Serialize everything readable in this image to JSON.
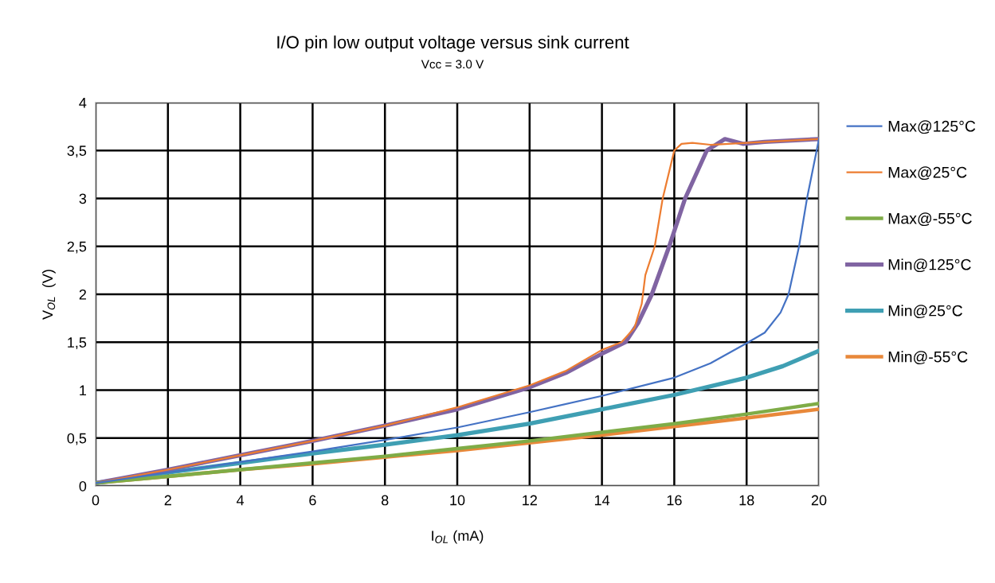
{
  "chart_data": {
    "type": "line",
    "title": "I/O pin low output voltage versus sink current",
    "subtitle": "Vcc = 3.0 V",
    "xlabel": "I$_{OL}$ (mA)",
    "ylabel": "V$_{OL}$  (V)",
    "xlim": [
      0,
      20
    ],
    "xticks": [
      0,
      2,
      4,
      6,
      8,
      10,
      12,
      14,
      16,
      18,
      20
    ],
    "ylim": [
      0,
      4
    ],
    "yticks": [
      0,
      {
        "value": 0.5,
        "label": "0,5"
      },
      1,
      {
        "value": 1.5,
        "label": "1,5"
      },
      2,
      {
        "value": 2.5,
        "label": "2,5"
      },
      3,
      {
        "value": 3.5,
        "label": "3,5"
      },
      4
    ],
    "grid": true,
    "legend": "right",
    "marker": "none",
    "line_style": "solid",
    "series": [
      {
        "name": "Max@125°C",
        "color": "#4472c4",
        "x": [
          0,
          2,
          4,
          6,
          8,
          10,
          12,
          14,
          16,
          17,
          18,
          18.5,
          18.94,
          19.16,
          19.45,
          19.67,
          20
        ],
        "values": [
          0.03,
          0.14,
          0.25,
          0.36,
          0.48,
          0.61,
          0.77,
          0.94,
          1.13,
          1.28,
          1.49,
          1.6,
          1.81,
          2.0,
          2.5,
          3.0,
          3.62
        ]
      },
      {
        "name": "Max@25°C",
        "color": "#ed7d31",
        "x": [
          0,
          2,
          4,
          6,
          8,
          10,
          12,
          13,
          14,
          14.54,
          14.9,
          15.1,
          15.2,
          15.46,
          15.68,
          16.0,
          16.2,
          16.5,
          17,
          17.5,
          18,
          20
        ],
        "values": [
          0.03,
          0.17,
          0.32,
          0.47,
          0.63,
          0.82,
          1.05,
          1.2,
          1.42,
          1.5,
          1.65,
          1.9,
          2.2,
          2.5,
          3.0,
          3.5,
          3.57,
          3.58,
          3.56,
          3.57,
          3.58,
          3.62
        ]
      },
      {
        "name": "Max@-55°C",
        "color": "#7fac47",
        "x": [
          0,
          2,
          4,
          6,
          8,
          10,
          12,
          14,
          16,
          18,
          20
        ],
        "values": [
          0.03,
          0.1,
          0.17,
          0.24,
          0.31,
          0.39,
          0.47,
          0.56,
          0.65,
          0.75,
          0.86
        ]
      },
      {
        "name": "Min@125°C",
        "color": "#8064a2",
        "x": [
          0,
          2,
          4,
          6,
          8,
          10,
          12,
          13,
          14,
          14.65,
          15.0,
          15.38,
          15.86,
          16.3,
          16.9,
          17.4,
          17.9,
          18.5,
          20
        ],
        "values": [
          0.03,
          0.17,
          0.32,
          0.47,
          0.63,
          0.8,
          1.03,
          1.18,
          1.38,
          1.5,
          1.7,
          2.0,
          2.5,
          3.0,
          3.5,
          3.62,
          3.57,
          3.59,
          3.62
        ]
      },
      {
        "name": "Min@25°C",
        "color": "#3f9fb3",
        "x": [
          0,
          2,
          4,
          6,
          8,
          10,
          12,
          14,
          16,
          18,
          19,
          20
        ],
        "values": [
          0.03,
          0.14,
          0.24,
          0.34,
          0.43,
          0.53,
          0.65,
          0.8,
          0.95,
          1.13,
          1.25,
          1.41
        ]
      },
      {
        "name": "Min@-55°C",
        "color": "#e8883a",
        "x": [
          0,
          2,
          4,
          6,
          8,
          10,
          12,
          14,
          16,
          18,
          20
        ],
        "values": [
          0.03,
          0.1,
          0.17,
          0.23,
          0.3,
          0.37,
          0.45,
          0.53,
          0.62,
          0.71,
          0.8
        ]
      }
    ]
  }
}
